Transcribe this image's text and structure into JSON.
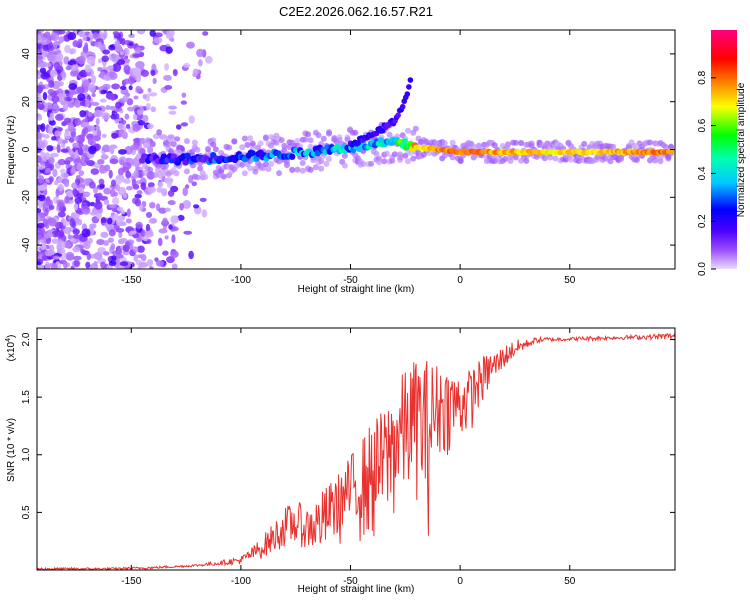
{
  "page": {
    "title": "C2E2.2026.062.16.57.R21"
  },
  "chart_data": [
    {
      "type": "heatmap",
      "xlabel": "Height of straight line (km)",
      "ylabel": "Frequency (Hz)",
      "xlim": [
        -193,
        98
      ],
      "ylim": [
        -50,
        50
      ],
      "xticks": [
        -150,
        -100,
        -50,
        0,
        50
      ],
      "yticks": [
        -40,
        -20,
        0,
        20,
        40
      ],
      "xtick_labels": [
        "-150",
        "-100",
        "-50",
        "0",
        "50"
      ],
      "ytick_labels": [
        "-40",
        "-20",
        "0",
        "20",
        "40"
      ],
      "colorbar": {
        "label": "Normalized spectral amplitude",
        "range": [
          0,
          1
        ],
        "ticks": [
          0.0,
          0.2,
          0.4,
          0.6,
          0.8
        ],
        "tick_labels": [
          "0.0",
          "0.2",
          "0.4",
          "0.6",
          "0.8"
        ],
        "colors": [
          "#e8d8ff",
          "#7a00ff",
          "#0000ff",
          "#00ffff",
          "#00ff00",
          "#ffff00",
          "#ff8000",
          "#ff0000",
          "#ff00aa"
        ]
      },
      "ridge": {
        "x": [
          -140,
          -120,
          -100,
          -80,
          -60,
          -40,
          -30,
          -20,
          -10,
          0,
          20,
          40,
          60,
          80,
          97
        ],
        "freq": [
          -4,
          -4,
          -3,
          -2,
          0,
          2,
          3,
          1,
          0,
          -1,
          -1,
          -1,
          -1,
          -1,
          -1
        ],
        "amplitude": [
          0.15,
          0.2,
          0.25,
          0.3,
          0.35,
          0.4,
          0.45,
          0.7,
          0.75,
          0.8,
          0.75,
          0.7,
          0.7,
          0.75,
          0.8
        ]
      },
      "branch": {
        "x": [
          -50,
          -40,
          -30,
          -25,
          -22
        ],
        "freq": [
          2,
          6,
          12,
          20,
          32
        ]
      }
    },
    {
      "type": "line",
      "xlabel": "Height of straight line (km)",
      "ylabel": "SNR (10 * v/v)",
      "scale_label": "(x10",
      "scale_exponent": "4",
      "scale_suffix": ")",
      "xlim": [
        -193,
        98
      ],
      "ylim": [
        0,
        2.1
      ],
      "xticks": [
        -150,
        -100,
        -50,
        0,
        50
      ],
      "yticks": [
        0.5,
        1.0,
        1.5,
        2.0
      ],
      "xtick_labels": [
        "-150",
        "-100",
        "-50",
        "0",
        "50"
      ],
      "ytick_labels": [
        "0.5",
        "1.0",
        "1.5",
        "2.0"
      ],
      "series": [
        {
          "name": "SNR",
          "color": "#e8322f",
          "x": [
            -193,
            -160,
            -140,
            -130,
            -120,
            -110,
            -100,
            -95,
            -90,
            -85,
            -80,
            -75,
            -70,
            -65,
            -60,
            -55,
            -50,
            -45,
            -40,
            -35,
            -30,
            -25,
            -20,
            -15,
            -10,
            -5,
            0,
            5,
            10,
            15,
            20,
            25,
            30,
            35,
            40,
            50,
            60,
            70,
            80,
            90,
            98
          ],
          "upper": [
            0.02,
            0.02,
            0.03,
            0.04,
            0.05,
            0.08,
            0.12,
            0.2,
            0.3,
            0.42,
            0.55,
            0.6,
            0.55,
            0.65,
            0.75,
            0.85,
            1.0,
            1.15,
            1.3,
            1.4,
            1.6,
            1.75,
            1.85,
            1.85,
            1.8,
            1.75,
            1.7,
            1.75,
            1.85,
            1.9,
            1.95,
            2.0,
            2.0,
            2.02,
            2.02,
            2.02,
            2.03,
            2.03,
            2.04,
            2.05,
            2.06
          ],
          "lower": [
            0.0,
            0.0,
            0.01,
            0.02,
            0.03,
            0.04,
            0.05,
            0.08,
            0.1,
            0.15,
            0.2,
            0.22,
            0.18,
            0.15,
            0.2,
            0.2,
            0.25,
            0.2,
            0.15,
            0.25,
            0.35,
            0.5,
            0.6,
            0.2,
            0.9,
            1.0,
            1.05,
            1.2,
            1.4,
            1.6,
            1.75,
            1.85,
            1.92,
            1.97,
            1.98,
            1.99,
            1.99,
            2.0,
            2.0,
            2.0,
            2.0
          ]
        }
      ]
    }
  ]
}
